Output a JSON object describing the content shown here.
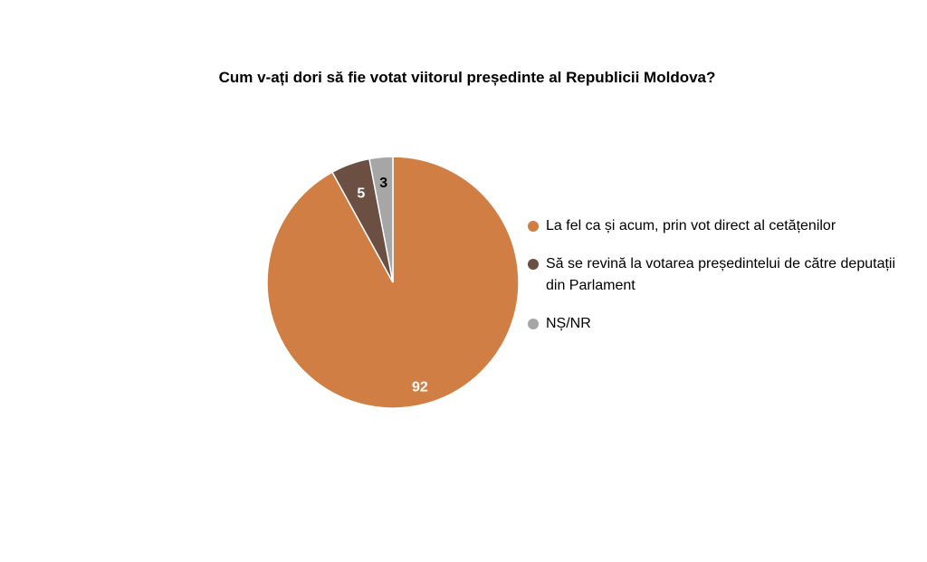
{
  "chart_data": {
    "type": "pie",
    "title": "Cum v-ați dori să fie votat viitorul președinte al Republicii Moldova?",
    "categories": [
      "La fel ca și acum, prin vot direct al cetățenilor",
      "Să se revină la votarea președintelui de către deputații din Parlament",
      "NȘ/NR"
    ],
    "values": [
      92,
      5,
      3
    ],
    "data_labels": [
      "92",
      "5",
      "3"
    ],
    "colors": [
      "#D07E43",
      "#6B4F43",
      "#A6A6A6"
    ],
    "label_colors": [
      "#FFFFFF",
      "#FFFFFF",
      "#000000"
    ],
    "start_angle_deg": 0,
    "direction": "clockwise",
    "legend_position": "right"
  }
}
